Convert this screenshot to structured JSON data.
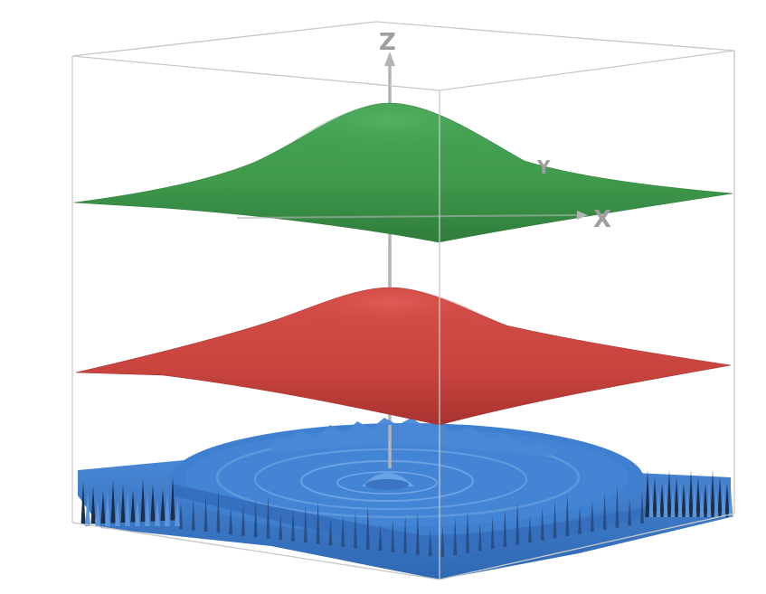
{
  "axes": {
    "x_label": "X",
    "y_label": "Y",
    "z_label": "Z",
    "axis_color": "#b4b4b4",
    "label_color": "#9e9e9e"
  },
  "box": {
    "edge_color": "#c8c8c8"
  },
  "surfaces": [
    {
      "id": "top",
      "shape": "gaussian bump",
      "color": "#3f9a4c",
      "dark": "#2e7a3a",
      "light": "#5bb56a"
    },
    {
      "id": "middle",
      "shape": "gaussian bump",
      "color": "#c9443f",
      "dark": "#a3302c",
      "light": "#de5d58"
    },
    {
      "id": "bottom",
      "shape": "oscillating ripple (aliased)",
      "color": "#3f7fd0",
      "dark": "#1f4f95",
      "light": "#6aa2e6"
    }
  ]
}
